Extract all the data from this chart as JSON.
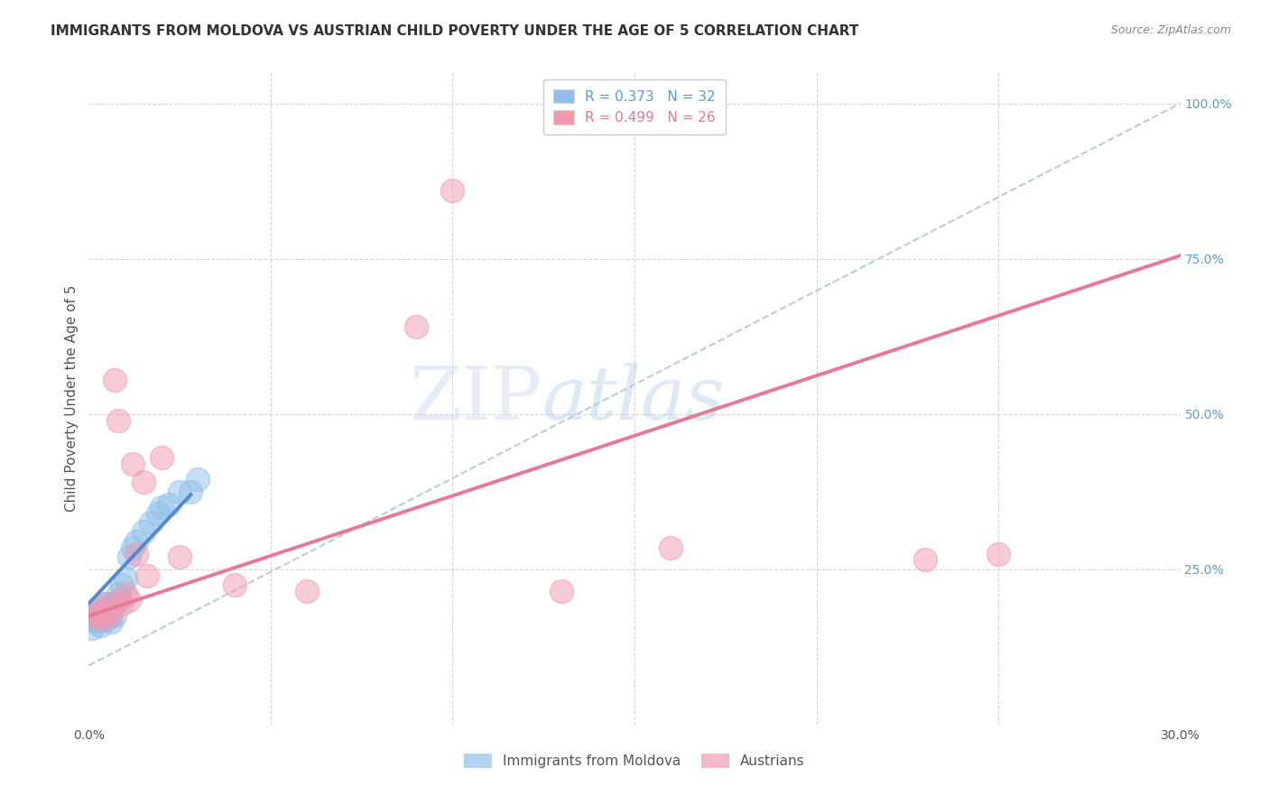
{
  "title": "IMMIGRANTS FROM MOLDOVA VS AUSTRIAN CHILD POVERTY UNDER THE AGE OF 5 CORRELATION CHART",
  "source": "Source: ZipAtlas.com",
  "ylabel": "Child Poverty Under the Age of 5",
  "x_min": 0.0,
  "x_max": 0.3,
  "y_min": 0.0,
  "y_max": 1.05,
  "y_ticks": [
    0.0,
    0.25,
    0.5,
    0.75,
    1.0
  ],
  "y_tick_labels": [
    "",
    "25.0%",
    "50.0%",
    "75.0%",
    "100.0%"
  ],
  "x_ticks": [
    0.0,
    0.05,
    0.1,
    0.15,
    0.2,
    0.25,
    0.3
  ],
  "x_tick_labels": [
    "0.0%",
    "",
    "",
    "",
    "",
    "",
    "30.0%"
  ],
  "watermark_zip": "ZIP",
  "watermark_atlas": "atlas",
  "legend_r1": "R = 0.373",
  "legend_n1": "N = 32",
  "legend_r2": "R = 0.499",
  "legend_n2": "N = 26",
  "blue_scatter_x": [
    0.001,
    0.002,
    0.002,
    0.002,
    0.003,
    0.003,
    0.003,
    0.004,
    0.004,
    0.004,
    0.005,
    0.005,
    0.005,
    0.006,
    0.006,
    0.007,
    0.007,
    0.008,
    0.008,
    0.009,
    0.01,
    0.011,
    0.012,
    0.013,
    0.015,
    0.017,
    0.019,
    0.02,
    0.022,
    0.025,
    0.028,
    0.03
  ],
  "blue_scatter_y": [
    0.155,
    0.165,
    0.17,
    0.175,
    0.16,
    0.175,
    0.185,
    0.17,
    0.18,
    0.195,
    0.17,
    0.175,
    0.195,
    0.165,
    0.185,
    0.175,
    0.195,
    0.2,
    0.21,
    0.225,
    0.235,
    0.27,
    0.285,
    0.295,
    0.31,
    0.325,
    0.34,
    0.35,
    0.355,
    0.375,
    0.375,
    0.395
  ],
  "pink_scatter_x": [
    0.001,
    0.002,
    0.003,
    0.004,
    0.005,
    0.005,
    0.006,
    0.007,
    0.008,
    0.009,
    0.01,
    0.011,
    0.012,
    0.013,
    0.015,
    0.016,
    0.02,
    0.025,
    0.04,
    0.06,
    0.09,
    0.1,
    0.13,
    0.16,
    0.23,
    0.25
  ],
  "pink_scatter_y": [
    0.175,
    0.18,
    0.17,
    0.175,
    0.185,
    0.195,
    0.175,
    0.555,
    0.49,
    0.195,
    0.21,
    0.2,
    0.42,
    0.275,
    0.39,
    0.24,
    0.43,
    0.27,
    0.225,
    0.215,
    0.64,
    0.86,
    0.215,
    0.285,
    0.265,
    0.275
  ],
  "blue_line_x": [
    0.0,
    0.028
  ],
  "blue_line_y": [
    0.195,
    0.37
  ],
  "pink_line_x": [
    0.0,
    0.3
  ],
  "pink_line_y": [
    0.175,
    0.755
  ],
  "dash_line_x": [
    0.0,
    0.3
  ],
  "dash_line_y": [
    0.095,
    1.0
  ],
  "background_color": "#ffffff",
  "grid_color": "#cccccc",
  "blue_color": "#90c0ea",
  "pink_color": "#f09ab0",
  "blue_line_color": "#5588cc",
  "pink_line_color": "#e87898",
  "dash_line_color": "#b8cce4",
  "blue_text_color": "#5b9bd5",
  "pink_text_color": "#e87898"
}
